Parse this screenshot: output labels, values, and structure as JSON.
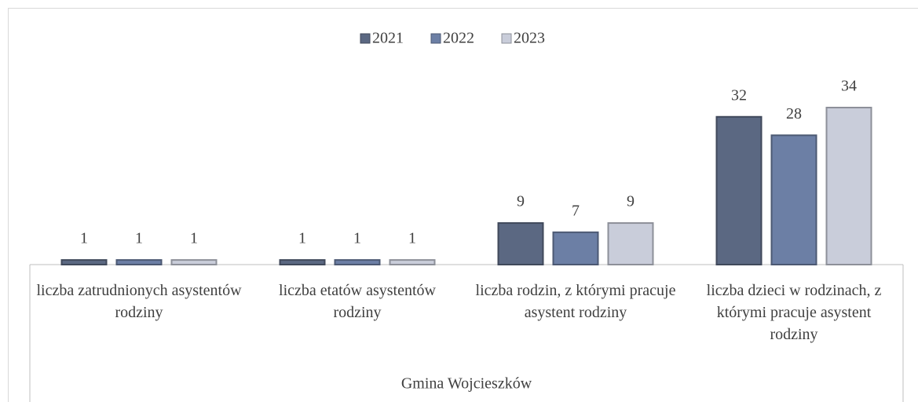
{
  "chart_data": {
    "type": "bar",
    "categories": [
      "liczba zatrudnionych asystentów rodziny",
      "liczba etatów asystentów rodziny",
      "liczba rodzin, z którymi pracuje asystent rodziny",
      "liczba dzieci w rodzinach, z którymi pracuje asystent rodziny"
    ],
    "group_label": "Gmina Wojcieszków",
    "series": [
      {
        "name": "2021",
        "color": "#5b6882",
        "values": [
          1,
          1,
          9,
          32
        ]
      },
      {
        "name": "2022",
        "color": "#6c7fa5",
        "values": [
          1,
          1,
          7,
          28
        ]
      },
      {
        "name": "2023",
        "color": "#c9cdda",
        "values": [
          1,
          1,
          9,
          34
        ]
      }
    ],
    "legend": "top"
  }
}
